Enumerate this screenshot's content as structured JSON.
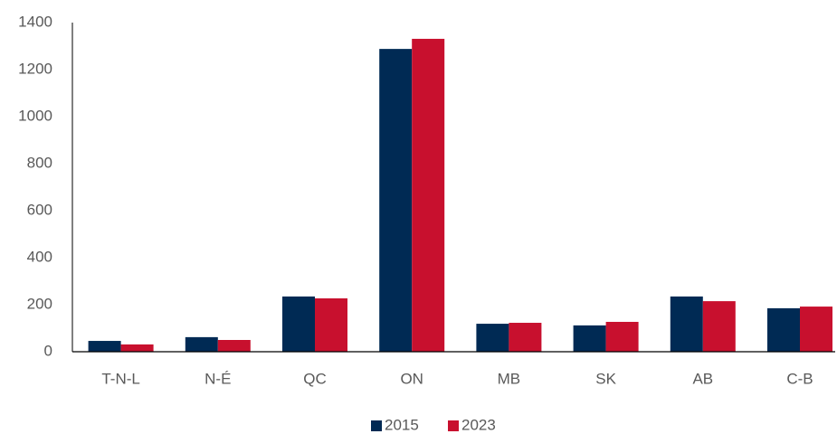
{
  "chart_data": {
    "type": "bar",
    "categories": [
      "T-N-L",
      "N-É",
      "QC",
      "ON",
      "MB",
      "SK",
      "AB",
      "C-B"
    ],
    "series": [
      {
        "name": "2015",
        "color": "#002a54",
        "values": [
          46,
          62,
          235,
          1288,
          119,
          112,
          235,
          185
        ]
      },
      {
        "name": "2023",
        "color": "#c8102e",
        "values": [
          31,
          50,
          227,
          1331,
          123,
          127,
          215,
          192
        ]
      }
    ],
    "ylim": [
      0,
      1400
    ],
    "yticks": [
      0,
      200,
      400,
      600,
      800,
      1000,
      1200,
      1400
    ],
    "grid": false,
    "legend": "bottom"
  }
}
